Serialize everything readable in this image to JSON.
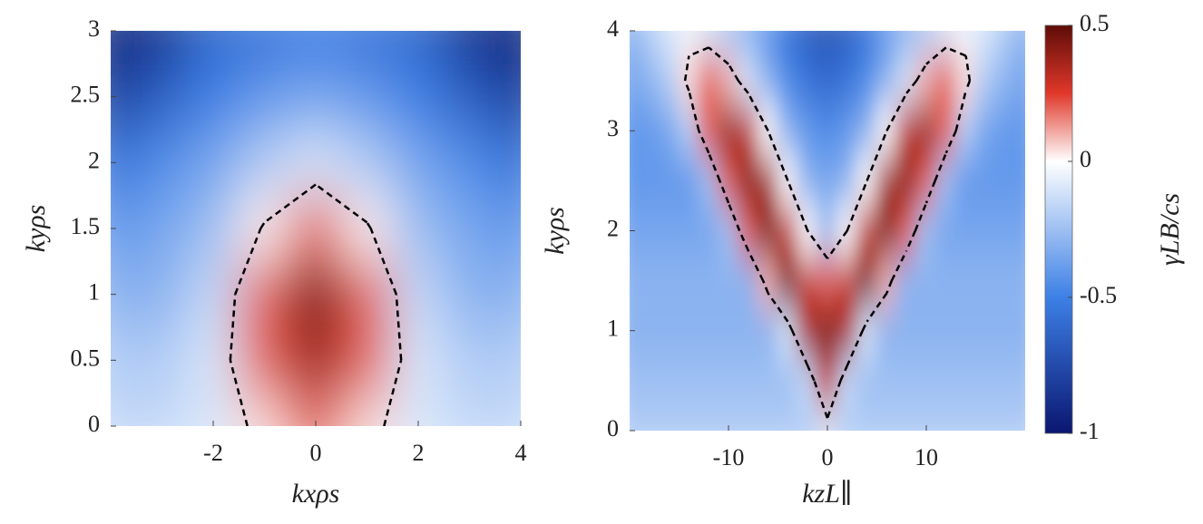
{
  "chart_data": [
    {
      "type": "heatmap",
      "xlabel": "kxρs",
      "ylabel": "kyρs",
      "xlim": [
        -4,
        4
      ],
      "ylim": [
        0,
        3
      ],
      "xticks": [
        -2,
        0,
        2,
        4
      ],
      "yticks": [
        0,
        0.5,
        1,
        1.5,
        2,
        2.5,
        3
      ],
      "clim": [
        -1,
        0.5
      ],
      "colormap": [
        {
          "value": -1,
          "color": "#0a1670"
        },
        {
          "value": -0.5,
          "color": "#3d80e6"
        },
        {
          "value": 0,
          "color": "#ffffff"
        },
        {
          "value": 0.25,
          "color": "#e0382a"
        },
        {
          "value": 0.5,
          "color": "#5e0c08"
        }
      ],
      "contour_level": 0,
      "x": [
        -4,
        -3,
        -2,
        -1,
        0,
        1,
        2,
        3,
        4
      ],
      "y": [
        0,
        0.5,
        1,
        1.5,
        2,
        2.5,
        3
      ],
      "z": [
        [
          -0.15,
          -0.15,
          -0.1,
          0.05,
          0.2,
          0.05,
          -0.1,
          -0.15,
          -0.15
        ],
        [
          -0.2,
          -0.2,
          -0.1,
          0.2,
          0.38,
          0.2,
          -0.1,
          -0.2,
          -0.2
        ],
        [
          -0.3,
          -0.3,
          -0.15,
          0.2,
          0.45,
          0.2,
          -0.15,
          -0.3,
          -0.3
        ],
        [
          -0.4,
          -0.35,
          -0.25,
          0.02,
          0.2,
          0.02,
          -0.25,
          -0.35,
          -0.4
        ],
        [
          -0.55,
          -0.45,
          -0.35,
          -0.2,
          -0.1,
          -0.2,
          -0.35,
          -0.45,
          -0.55
        ],
        [
          -0.8,
          -0.65,
          -0.5,
          -0.4,
          -0.35,
          -0.4,
          -0.5,
          -0.65,
          -0.8
        ],
        [
          -0.95,
          -0.85,
          -0.6,
          -0.55,
          -0.5,
          -0.55,
          -0.6,
          -0.85,
          -0.95
        ]
      ]
    },
    {
      "type": "heatmap",
      "xlabel": "kzL∥",
      "ylabel": "kyρs",
      "xlim": [
        -20,
        20
      ],
      "ylim": [
        0,
        4
      ],
      "xticks": [
        -10,
        0,
        10
      ],
      "yticks": [
        0,
        1,
        2,
        3,
        4
      ],
      "clim": [
        -1,
        0.5
      ],
      "colormap": [
        {
          "value": -1,
          "color": "#0a1670"
        },
        {
          "value": -0.5,
          "color": "#3d80e6"
        },
        {
          "value": 0,
          "color": "#ffffff"
        },
        {
          "value": 0.25,
          "color": "#e0382a"
        },
        {
          "value": 0.5,
          "color": "#5e0c08"
        }
      ],
      "contour_level": 0,
      "colorbar": {
        "label": "γLB/cs",
        "ticks": [
          -1,
          -0.5,
          0,
          0.5
        ]
      },
      "x": [
        -20,
        -18,
        -16,
        -14,
        -12,
        -10,
        -8,
        -6,
        -4,
        -2,
        0,
        2,
        4,
        6,
        8,
        10,
        12,
        14,
        16,
        18,
        20
      ],
      "y": [
        0,
        0.5,
        1,
        1.5,
        2,
        2.5,
        3,
        3.5,
        4
      ],
      "z": [
        [
          -0.2,
          -0.2,
          -0.2,
          -0.2,
          -0.2,
          -0.2,
          -0.2,
          -0.2,
          -0.2,
          -0.2,
          -0.1,
          -0.2,
          -0.2,
          -0.2,
          -0.2,
          -0.2,
          -0.2,
          -0.2,
          -0.2,
          -0.2,
          -0.2
        ],
        [
          -0.25,
          -0.25,
          -0.25,
          -0.25,
          -0.25,
          -0.25,
          -0.25,
          -0.25,
          -0.25,
          -0.15,
          0.3,
          -0.15,
          -0.25,
          -0.25,
          -0.25,
          -0.25,
          -0.25,
          -0.25,
          -0.25,
          -0.25,
          -0.25
        ],
        [
          -0.3,
          -0.3,
          -0.3,
          -0.3,
          -0.3,
          -0.3,
          -0.3,
          -0.3,
          -0.1,
          0.35,
          0.45,
          0.35,
          -0.1,
          -0.3,
          -0.3,
          -0.3,
          -0.3,
          -0.3,
          -0.3,
          -0.3,
          -0.3
        ],
        [
          -0.3,
          -0.3,
          -0.3,
          -0.3,
          -0.3,
          -0.3,
          -0.3,
          0.1,
          0.45,
          0.3,
          0.2,
          0.3,
          0.45,
          0.1,
          -0.3,
          -0.3,
          -0.3,
          -0.3,
          -0.3,
          -0.3,
          -0.3
        ],
        [
          -0.35,
          -0.35,
          -0.35,
          -0.35,
          -0.35,
          -0.25,
          0.2,
          0.45,
          0.3,
          0,
          -0.25,
          0,
          0.3,
          0.45,
          0.2,
          -0.25,
          -0.35,
          -0.35,
          -0.35,
          -0.35,
          -0.35
        ],
        [
          -0.4,
          -0.4,
          -0.4,
          -0.4,
          -0.25,
          0.2,
          0.42,
          0.35,
          0,
          -0.3,
          -0.35,
          -0.3,
          0,
          0.35,
          0.42,
          0.2,
          -0.25,
          -0.4,
          -0.4,
          -0.4,
          -0.4
        ],
        [
          -0.4,
          -0.4,
          -0.35,
          -0.2,
          0.2,
          0.4,
          0.3,
          0,
          -0.3,
          -0.4,
          -0.45,
          -0.4,
          -0.3,
          0,
          0.3,
          0.4,
          0.2,
          -0.2,
          -0.35,
          -0.4,
          -0.4
        ],
        [
          -0.35,
          -0.3,
          -0.2,
          0.05,
          0.2,
          0.1,
          -0.1,
          -0.3,
          -0.45,
          -0.55,
          -0.6,
          -0.55,
          -0.45,
          -0.3,
          -0.1,
          0.1,
          0.2,
          0.05,
          -0.2,
          -0.3,
          -0.35
        ],
        [
          -0.3,
          -0.2,
          -0.1,
          -0.05,
          -0.1,
          -0.2,
          -0.3,
          -0.4,
          -0.55,
          -0.65,
          -0.7,
          -0.65,
          -0.55,
          -0.4,
          -0.3,
          -0.2,
          -0.1,
          -0.05,
          -0.1,
          -0.2,
          -0.3
        ]
      ]
    }
  ]
}
